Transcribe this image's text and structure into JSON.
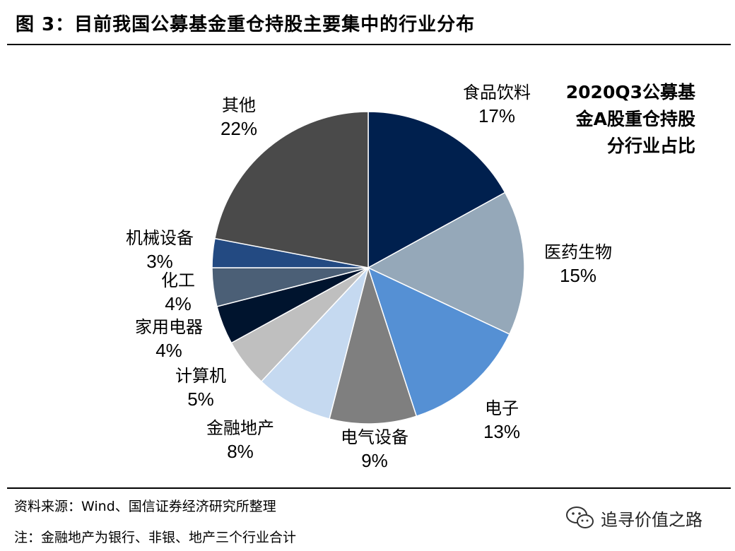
{
  "figure": {
    "title": "图 3：目前我国公募基金重仓持股主要集中的行业分布",
    "side_title": [
      "2020Q3公募基",
      "金A股重仓持股",
      "分行业占比"
    ],
    "source": "资料来源：Wind、国信证券经济研究所整理",
    "note": "注：金融地产为银行、非银、地产三个行业合计",
    "watermark": "追寻价值之路",
    "watermark_icon": "wechat-icon"
  },
  "chart_data": {
    "type": "pie",
    "title": "2020Q3公募基金A股重仓持股分行业占比",
    "start_angle": "12 o'clock",
    "direction": "clockwise",
    "slices": [
      {
        "label": "食品饮料",
        "value": 17,
        "display": "17%",
        "color": "#00204e"
      },
      {
        "label": "医药生物",
        "value": 15,
        "display": "15%",
        "color": "#95a8b9"
      },
      {
        "label": "电子",
        "value": 13,
        "display": "13%",
        "color": "#5590d4"
      },
      {
        "label": "电气设备",
        "value": 9,
        "display": "9%",
        "color": "#7f7f7f"
      },
      {
        "label": "金融地产",
        "value": 8,
        "display": "8%",
        "color": "#c5d9f0"
      },
      {
        "label": "计算机",
        "value": 5,
        "display": "5%",
        "color": "#bfbfbf"
      },
      {
        "label": "家用电器",
        "value": 4,
        "display": "4%",
        "color": "#00142e"
      },
      {
        "label": "化工",
        "value": 4,
        "display": "4%",
        "color": "#4b5f76"
      },
      {
        "label": "机械设备",
        "value": 3,
        "display": "3%",
        "color": "#234a82"
      },
      {
        "label": "其他",
        "value": 22,
        "display": "22%",
        "color": "#4a4a4a"
      }
    ]
  }
}
